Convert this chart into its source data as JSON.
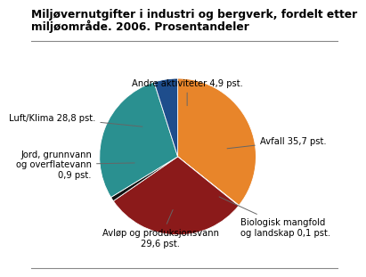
{
  "title_line1": "Miljøvernutgifter i industri og bergverk, fordelt etter",
  "title_line2": "miljøområde. 2006. Prosentandeler",
  "slices": [
    {
      "label": "Avfall 35,7 pst.",
      "value": 35.7,
      "color": "#E8852A"
    },
    {
      "label": "Biologisk mangfold\nog landskap 0,1 pst.",
      "value": 0.1,
      "color": "#8B1A1A"
    },
    {
      "label": "Avløp og produksjonsvann\n29,6 pst.",
      "value": 29.6,
      "color": "#8B1A1A"
    },
    {
      "label": "Jord, grunnvann\nog overflatevann\n0,9 pst.",
      "value": 0.9,
      "color": "#1A1A1A"
    },
    {
      "label": "Luft/Klima 28,8 pst.",
      "value": 28.8,
      "color": "#2A9090"
    },
    {
      "label": "Andre aktiviteter 4,9 pst.",
      "value": 4.9,
      "color": "#1E4D8C"
    }
  ],
  "slice_colors": [
    "#E8852A",
    "#7B1010",
    "#8B1A1A",
    "#111111",
    "#2A9090",
    "#1E4D8C"
  ],
  "label_fontsize": 7.2,
  "title_fontsize": 8.8,
  "background_color": "#ffffff"
}
